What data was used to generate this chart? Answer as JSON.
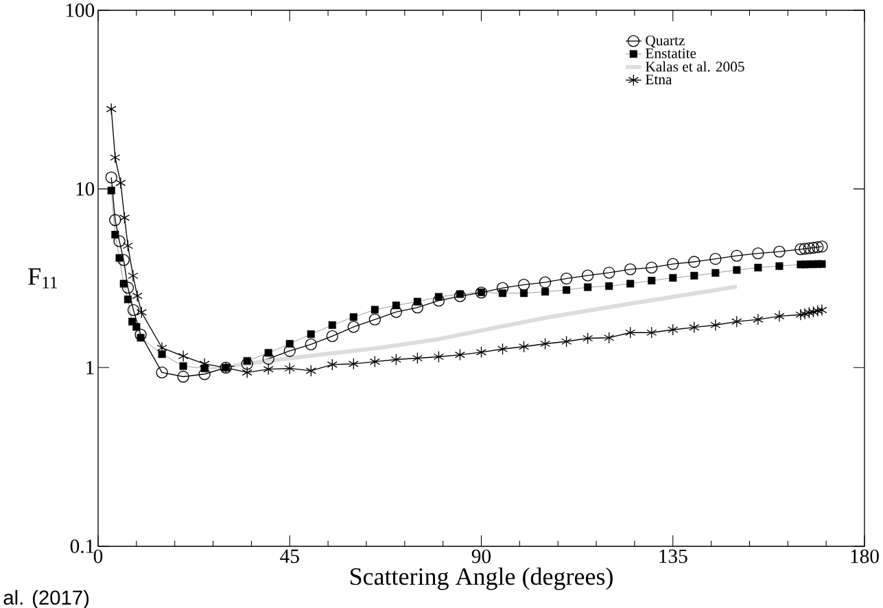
{
  "chart_data": {
    "type": "line",
    "xlabel": "Scattering Angle (degrees)",
    "ylabel": "F$_{11}$",
    "annotations": [
      "al. (2017)"
    ],
    "xlim": [
      0,
      180
    ],
    "ylim": [
      0.1,
      100
    ],
    "xticks": [
      0,
      45,
      90,
      135,
      180
    ],
    "yticks": [
      0.1,
      1,
      10,
      100
    ],
    "log": "y",
    "grid": false,
    "legend": "top right",
    "series": [
      {
        "name": "Quartz",
        "color": "#000000",
        "marker": "circle",
        "x": [
          3.1,
          4,
          5,
          6,
          7,
          8.3,
          10,
          15,
          20,
          25,
          30,
          35,
          40,
          45,
          50,
          55,
          60,
          65,
          70,
          75,
          80,
          85,
          90,
          95,
          100,
          105,
          110,
          115,
          120,
          125,
          130,
          135,
          140,
          145,
          150,
          155,
          160,
          165,
          166,
          167,
          168,
          169,
          170
        ],
        "values": [
          11.6,
          6.7,
          5.1,
          4.0,
          2.8,
          2.1,
          1.53,
          0.94,
          0.89,
          0.92,
          1.0,
          1.05,
          1.12,
          1.24,
          1.35,
          1.5,
          1.69,
          1.86,
          2.05,
          2.17,
          2.37,
          2.51,
          2.63,
          2.79,
          2.91,
          3.0,
          3.15,
          3.28,
          3.4,
          3.55,
          3.63,
          3.8,
          3.91,
          4.06,
          4.23,
          4.36,
          4.46,
          4.6,
          4.63,
          4.66,
          4.69,
          4.72,
          4.76
        ]
      },
      {
        "name": "Enstatite",
        "color": "#000000",
        "marker": "square",
        "x": [
          3.1,
          4,
          5,
          6,
          7,
          8,
          9,
          10,
          15,
          20,
          25,
          30,
          35,
          40,
          45,
          50,
          55,
          60,
          65,
          70,
          75,
          80,
          85,
          90,
          95,
          100,
          105,
          110,
          115,
          120,
          125,
          130,
          135,
          140,
          145,
          150,
          155,
          160,
          165,
          166,
          167,
          168,
          169,
          170
        ],
        "values": [
          9.8,
          5.55,
          4.11,
          2.95,
          2.41,
          1.81,
          1.69,
          1.47,
          1.19,
          1.02,
          0.99,
          1.0,
          1.09,
          1.21,
          1.36,
          1.54,
          1.73,
          1.92,
          2.11,
          2.23,
          2.34,
          2.49,
          2.58,
          2.64,
          2.61,
          2.61,
          2.66,
          2.72,
          2.82,
          2.86,
          2.95,
          3.07,
          3.18,
          3.27,
          3.39,
          3.52,
          3.63,
          3.7,
          3.78,
          3.78,
          3.79,
          3.79,
          3.8,
          3.8
        ]
      },
      {
        "name": "Kalas et al. 2005",
        "color": "#dddddd",
        "marker": "none",
        "x": [
          32,
          40,
          52,
          65,
          79,
          92,
          106,
          124,
          150
        ],
        "values": [
          1.03,
          1.09,
          1.18,
          1.28,
          1.43,
          1.65,
          1.92,
          2.26,
          2.84
        ]
      },
      {
        "name": "Etna",
        "color": "#000000",
        "marker": "cross",
        "x": [
          3.1,
          4,
          5.3,
          6.2,
          7,
          8.2,
          9.2,
          10.2,
          15,
          20,
          25,
          30,
          35,
          40,
          45,
          50,
          55,
          60,
          65,
          70,
          75,
          80,
          85,
          90,
          95,
          100,
          105,
          110,
          115,
          120,
          125,
          130,
          135,
          140,
          145,
          150,
          155,
          160,
          165,
          166,
          167,
          168,
          169,
          170
        ],
        "values": [
          28,
          15,
          10.8,
          6.9,
          4.81,
          3.27,
          2.52,
          2.04,
          1.29,
          1.16,
          1.05,
          1.0,
          0.94,
          0.98,
          0.99,
          0.96,
          1.04,
          1.05,
          1.08,
          1.11,
          1.13,
          1.15,
          1.18,
          1.22,
          1.27,
          1.31,
          1.36,
          1.4,
          1.46,
          1.47,
          1.57,
          1.57,
          1.63,
          1.68,
          1.73,
          1.81,
          1.86,
          1.94,
          1.98,
          2.0,
          2.03,
          2.05,
          2.08,
          2.1
        ]
      }
    ]
  }
}
